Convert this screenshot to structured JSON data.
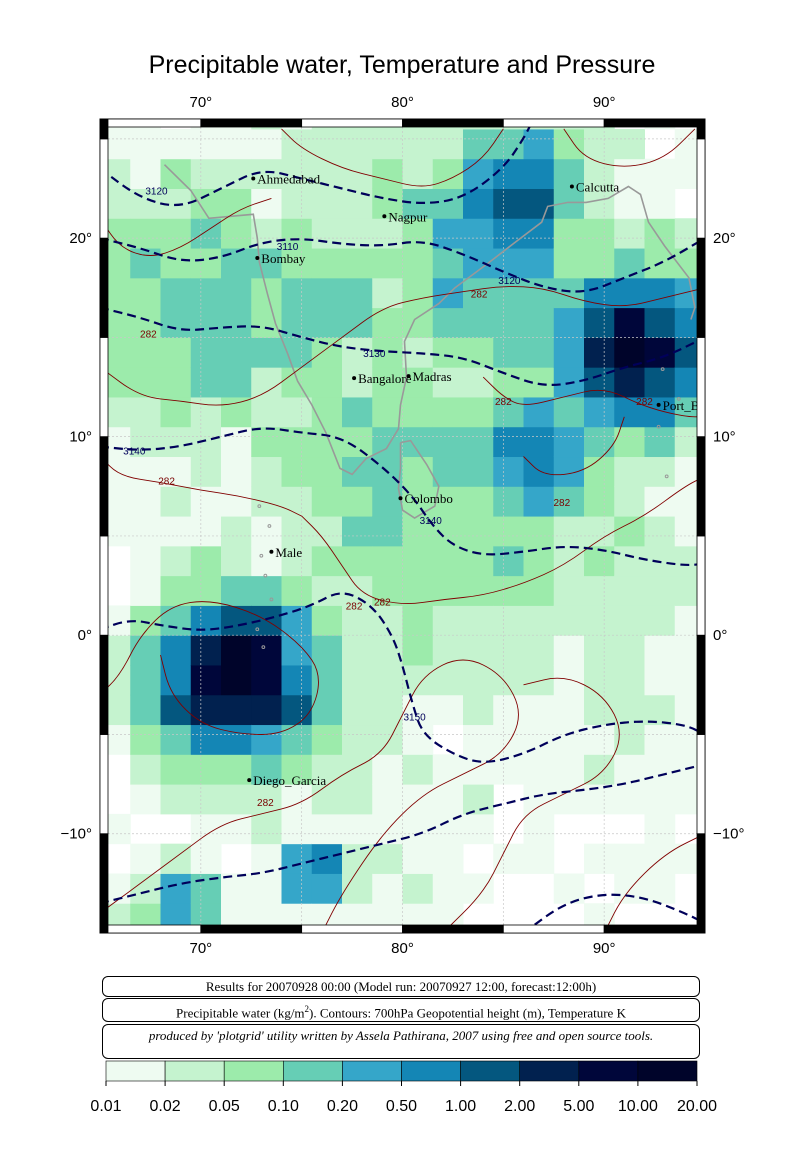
{
  "title": "Precipitable water, Temperature and Pressure",
  "axes": {
    "x_ticks": [
      {
        "value": 70,
        "label": "70°"
      },
      {
        "value": 80,
        "label": "80°"
      },
      {
        "value": 90,
        "label": "90°"
      }
    ],
    "y_ticks": [
      {
        "value": 20,
        "label": "20°"
      },
      {
        "value": 10,
        "label": "10°"
      },
      {
        "value": 0,
        "label": "0°"
      },
      {
        "value": -10,
        "label": "−10°"
      }
    ],
    "lon_range": [
      65,
      95
    ],
    "lat_range": [
      -15,
      26
    ]
  },
  "cities": [
    {
      "name": "Ahmedabad",
      "lon": 72.6,
      "lat": 23.0
    },
    {
      "name": "Calcutta",
      "lon": 88.4,
      "lat": 22.6
    },
    {
      "name": "Nagpur",
      "lon": 79.1,
      "lat": 21.1
    },
    {
      "name": "Bombay",
      "lon": 72.8,
      "lat": 19.0
    },
    {
      "name": "Bangalore",
      "lon": 77.6,
      "lat": 12.95
    },
    {
      "name": "Madras",
      "lon": 80.3,
      "lat": 13.05
    },
    {
      "name": "Port_B",
      "lon": 92.7,
      "lat": 11.6
    },
    {
      "name": "Colombo",
      "lon": 79.9,
      "lat": 6.9
    },
    {
      "name": "Male",
      "lon": 73.5,
      "lat": 4.2
    },
    {
      "name": "Diego_Garcia",
      "lon": 72.4,
      "lat": -7.3
    }
  ],
  "contour_labels": {
    "height": [
      {
        "text": "3120",
        "lon": 67.8,
        "lat": 22.2
      },
      {
        "text": "3110",
        "lon": 74.3,
        "lat": 19.4
      },
      {
        "text": "3120",
        "lon": 85.3,
        "lat": 17.7
      },
      {
        "text": "3130",
        "lon": 78.6,
        "lat": 14.0
      },
      {
        "text": "3140",
        "lon": 66.7,
        "lat": 9.1
      },
      {
        "text": "3140",
        "lon": 81.4,
        "lat": 5.6
      },
      {
        "text": "3150",
        "lon": 80.6,
        "lat": -4.3
      }
    ],
    "temperature": [
      {
        "text": "282",
        "lon": 67.4,
        "lat": 15.0
      },
      {
        "text": "282",
        "lon": 83.8,
        "lat": 17.0
      },
      {
        "text": "282",
        "lon": 85.0,
        "lat": 11.6
      },
      {
        "text": "282",
        "lon": 92.0,
        "lat": 11.6
      },
      {
        "text": "282",
        "lon": 68.3,
        "lat": 7.6
      },
      {
        "text": "282",
        "lon": 87.9,
        "lat": 6.5
      },
      {
        "text": "282",
        "lon": 77.6,
        "lat": 1.3
      },
      {
        "text": "282",
        "lon": 79.0,
        "lat": 1.5
      },
      {
        "text": "282",
        "lon": 73.2,
        "lat": -8.6
      }
    ]
  },
  "info": {
    "line1": "Results for 20070928 00:00 (Model run: 20070927 12:00, forecast:12:00h)",
    "line2_a": "Precipitable water (kg/m",
    "line2_sup": "2",
    "line2_b": ").  Contours: 700hPa Geopotential height (m), Temperature K",
    "line3": "produced by 'plotgrid' utility written by Assela Pathirana, 2007 using free and open source tools."
  },
  "colorbar": {
    "labels": [
      "0.01",
      "0.02",
      "0.05",
      "0.10",
      "0.20",
      "0.50",
      "1.00",
      "2.00",
      "5.00",
      "10.00",
      "20.00"
    ],
    "colors": [
      "#eefbf1",
      "#c5f3cf",
      "#9cebab",
      "#66ceb5",
      "#35a6c9",
      "#1486b5",
      "#04577f",
      "#01214f",
      "#00063a",
      "#00042a"
    ]
  },
  "colors": {
    "height_contour": "#00005a",
    "temperature_contour": "#800000",
    "coastline": "#999999",
    "grid": "#c8c8c8"
  }
}
